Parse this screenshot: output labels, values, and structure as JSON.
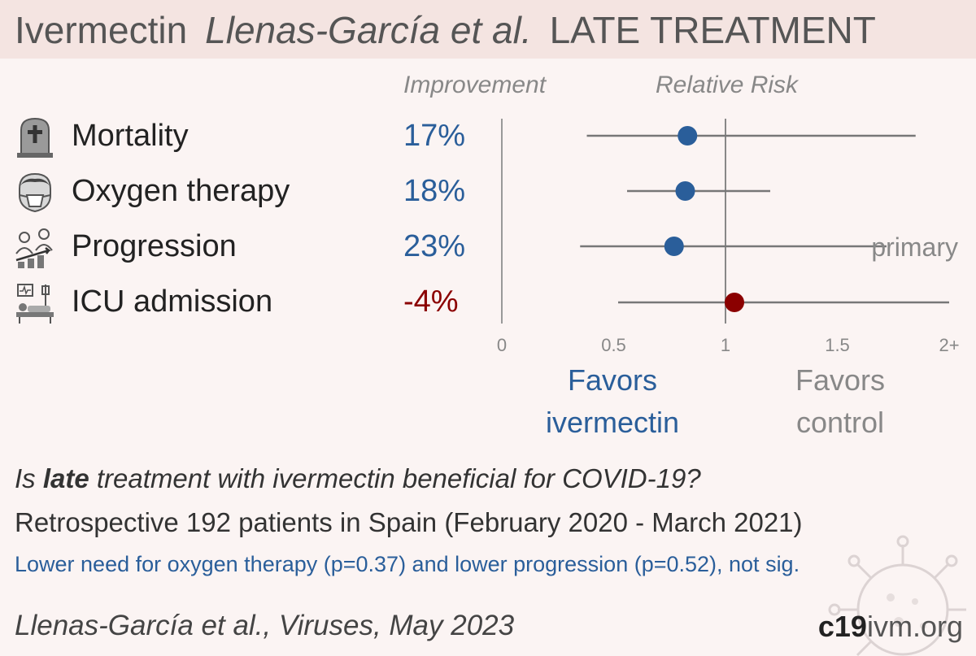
{
  "header": {
    "drug": "Ivermectin",
    "authors": "Llenas-García et al.",
    "treatment": "LATE TREATMENT"
  },
  "columns": {
    "improvement": "Improvement",
    "relative_risk": "Relative Risk"
  },
  "outcomes": [
    {
      "label": "Mortality",
      "improvement": "17%",
      "icon": "tombstone-icon"
    },
    {
      "label": "Oxygen therapy",
      "improvement": "18%",
      "icon": "oxygen-mask-icon"
    },
    {
      "label": "Progression",
      "improvement": "23%",
      "icon": "progression-icon"
    },
    {
      "label": "ICU admission",
      "improvement": "-4%",
      "icon": "icu-bed-icon"
    }
  ],
  "colors": {
    "favors_treatment": "#2a5e9a",
    "favors_control": "#8b0000",
    "neutral_text": "#888888"
  },
  "chart_data": {
    "type": "scatter",
    "subtype": "forest-plot",
    "x_axis": {
      "ticks": [
        "0",
        "0.5",
        "1",
        "1.5",
        "2+"
      ],
      "range": [
        0,
        2
      ],
      "reference_line": 1
    },
    "rows": [
      {
        "outcome": "Mortality",
        "rr": 0.83,
        "ci_low": 0.38,
        "ci_high": 1.85
      },
      {
        "outcome": "Oxygen therapy",
        "rr": 0.82,
        "ci_low": 0.56,
        "ci_high": 1.2
      },
      {
        "outcome": "Progression",
        "rr": 0.77,
        "ci_low": 0.35,
        "ci_high": 1.72,
        "annotation": "primary"
      },
      {
        "outcome": "ICU admission",
        "rr": 1.04,
        "ci_low": 0.52,
        "ci_high": 2.0
      }
    ],
    "favors_left": "Favors\nivermectin",
    "favors_right": "Favors\ncontrol"
  },
  "favors": {
    "left": {
      "line1": "Favors",
      "line2": "ivermectin"
    },
    "right": {
      "line1": "Favors",
      "line2": "control"
    }
  },
  "footer": {
    "question_pre": "Is ",
    "question_bold": "late",
    "question_post": " treatment with ivermectin beneficial for COVID-19?",
    "details": "Retrospective 192 patients in Spain (February 2020 - March 2021)",
    "results": "Lower need for oxygen therapy (p=0.37) and lower progression (p=0.52), not sig.",
    "citation": "Llenas-García et al., Viruses, May 2023",
    "brand_bold": "c19",
    "brand_rest": "ivm.org"
  }
}
